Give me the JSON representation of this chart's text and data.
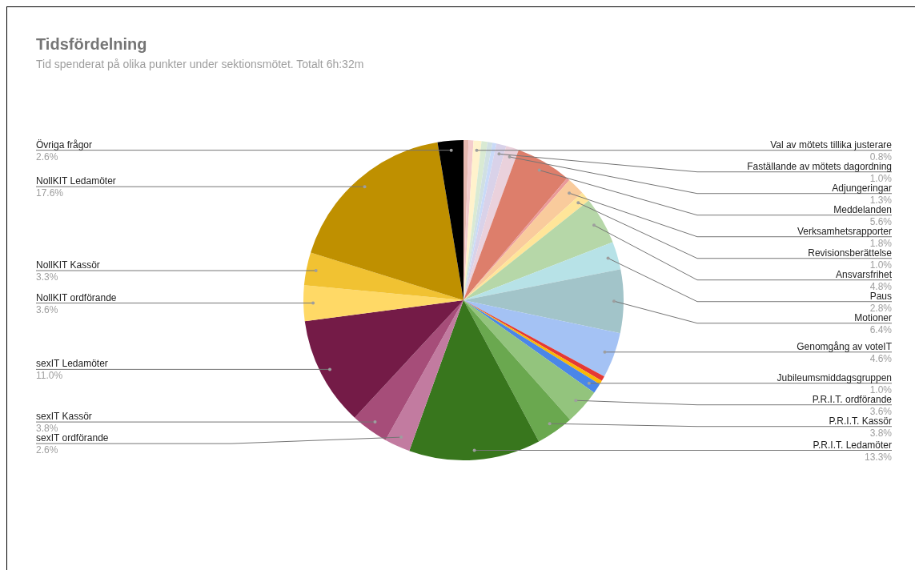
{
  "chart_data": {
    "type": "pie",
    "title": "Tidsfördelning",
    "subtitle": "Tid spenderat på olika punkter under sektionsmötet. Totalt 6h:32m",
    "categories": [
      null,
      null,
      "Val av mötets tillika justerare",
      null,
      null,
      null,
      "Faställande av mötets dagordning",
      "Adjungeringar",
      "Meddelanden",
      null,
      "Verksamhetsrapporter",
      "Revisionsberättelse",
      "Ansvarsfrihet",
      "Paus",
      "Motioner",
      "Genomgång av voteIT",
      null,
      null,
      "Jubileumsmiddagsgruppen",
      "P.R.I.T. ordförande",
      "P.R.I.T. Kassör",
      "P.R.I.T. Ledamöter",
      "sexIT ordförande",
      "sexIT Kassör",
      "sexIT Ledamöter",
      "NollKIT ordförande",
      "NollKIT Kassör",
      "NollKIT Ledamöter",
      "Övriga frågor"
    ],
    "values": [
      0.5,
      0.5,
      0.8,
      0.6,
      0.5,
      0.4,
      1.0,
      1.3,
      5.6,
      0.3,
      1.8,
      1.0,
      4.8,
      2.8,
      6.4,
      4.6,
      0.5,
      0.4,
      1.0,
      3.6,
      3.8,
      13.3,
      2.6,
      3.8,
      11.0,
      3.6,
      3.3,
      17.6,
      2.6
    ],
    "value_labels": [
      null,
      null,
      "0.8%",
      null,
      null,
      null,
      "1.0%",
      "1.3%",
      "5.6%",
      null,
      "1.8%",
      "1.0%",
      "4.8%",
      "2.8%",
      "6.4%",
      "4.6%",
      null,
      null,
      "1.0%",
      "3.6%",
      "3.8%",
      "13.3%",
      "2.6%",
      "3.8%",
      "11.0%",
      "3.6%",
      "3.3%",
      "17.6%",
      "2.6%"
    ],
    "colors": [
      "#e6b8af",
      "#f4cccc",
      "#fff2cc",
      "#d9ead3",
      "#d0e0e3",
      "#c9daf8",
      "#d9d2e9",
      "#ead1dc",
      "#dd7e6b",
      "#ea9999",
      "#f9cb9c",
      "#ffe599",
      "#b6d7a8",
      "#b7e2e7",
      "#a2c4c9",
      "#a4c2f4",
      "#e53935",
      "#f9b806",
      "#4a86e8",
      "#93c47d",
      "#6aa84f",
      "#38761d",
      "#c27ba0",
      "#a64d79",
      "#741b47",
      "#ffd966",
      "#f1c232",
      "#bf9000",
      "#000000"
    ]
  }
}
